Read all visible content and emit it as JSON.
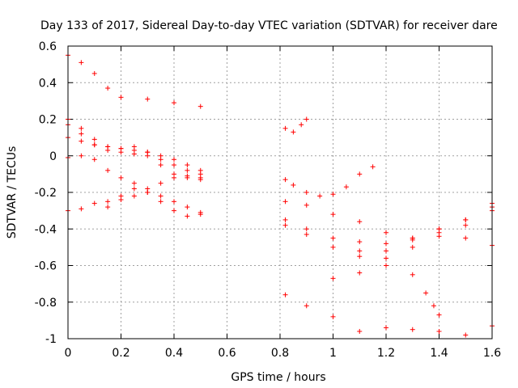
{
  "chart_data": {
    "type": "scatter",
    "title": "Day 133 of 2017, Sidereal Day-to-day VTEC variation (SDTVAR) for receiver dare",
    "xlabel": "GPS time / hours",
    "ylabel": "SDTVAR / TECUs",
    "xlim": [
      0,
      1.6
    ],
    "ylim": [
      -1,
      0.6
    ],
    "xticks": [
      0,
      0.2,
      0.4,
      0.6,
      0.8,
      1,
      1.2,
      1.4,
      1.6
    ],
    "xtick_labels": [
      "0",
      "0.2",
      "0.4",
      "0.6",
      "0.8",
      "1",
      "1.2",
      "1.4",
      "1.6"
    ],
    "yticks": [
      -1,
      -0.8,
      -0.6,
      -0.4,
      -0.2,
      0,
      0.2,
      0.4,
      0.6
    ],
    "ytick_labels": [
      "-1",
      "-0.8",
      "-0.6",
      "-0.4",
      "-0.2",
      "0",
      "0.2",
      "0.4",
      "0.6"
    ],
    "grid": true,
    "marker": "+",
    "color": "#ff0000",
    "series": [
      {
        "name": "s1",
        "x": [
          0.0,
          0.05,
          0.1,
          0.15,
          0.2,
          0.3,
          0.4,
          0.5
        ],
        "y": [
          0.55,
          0.51,
          0.45,
          0.37,
          0.32,
          0.31,
          0.29,
          0.27
        ]
      },
      {
        "name": "s2",
        "x": [
          0.0,
          0.05,
          0.1,
          0.15,
          0.2,
          0.25,
          0.3,
          0.35,
          0.4,
          0.45,
          0.5
        ],
        "y": [
          0.2,
          0.15,
          0.09,
          0.05,
          0.02,
          0.01,
          0.0,
          -0.02,
          -0.05,
          -0.08,
          -0.1
        ]
      },
      {
        "name": "s3",
        "x": [
          0.0,
          0.05,
          0.1,
          0.15,
          0.2,
          0.25,
          0.3,
          0.35,
          0.4,
          0.45,
          0.5
        ],
        "y": [
          0.1,
          0.08,
          0.06,
          0.05,
          0.04,
          0.03,
          0.02,
          0.0,
          -0.02,
          -0.05,
          -0.08
        ]
      },
      {
        "name": "s4",
        "x": [
          0.0,
          0.05,
          0.1,
          0.15,
          0.2,
          0.25,
          0.3,
          0.35,
          0.4,
          0.45,
          0.5
        ],
        "y": [
          0.17,
          0.12,
          0.06,
          0.03,
          0.04,
          0.05,
          0.02,
          -0.05,
          -0.1,
          -0.12,
          -0.12
        ]
      },
      {
        "name": "s5",
        "x": [
          0.0,
          0.05,
          0.1,
          0.15,
          0.2,
          0.25,
          0.3,
          0.35,
          0.4,
          0.45,
          0.5
        ],
        "y": [
          -0.01,
          0.0,
          -0.02,
          -0.08,
          -0.12,
          -0.15,
          -0.18,
          -0.22,
          -0.25,
          -0.28,
          -0.32
        ]
      },
      {
        "name": "s6",
        "x": [
          0.0,
          0.05,
          0.1,
          0.15,
          0.2,
          0.25,
          0.3,
          0.35,
          0.4,
          0.45,
          0.5
        ],
        "y": [
          -0.3,
          -0.29,
          -0.26,
          -0.25,
          -0.24,
          -0.22,
          -0.2,
          -0.15,
          -0.12,
          -0.11,
          -0.13
        ]
      },
      {
        "name": "s7",
        "x": [
          0.15,
          0.2,
          0.25,
          0.3,
          0.35,
          0.4,
          0.45,
          0.5
        ],
        "y": [
          -0.28,
          -0.22,
          -0.18,
          -0.2,
          -0.25,
          -0.3,
          -0.33,
          -0.31
        ]
      },
      {
        "name": "s8",
        "x": [
          0.82,
          0.85,
          0.88,
          0.9
        ],
        "y": [
          0.15,
          0.13,
          0.17,
          0.2
        ]
      },
      {
        "name": "s9",
        "x": [
          0.82,
          0.85,
          0.9,
          0.95,
          1.0,
          1.05,
          1.1,
          1.15
        ],
        "y": [
          -0.13,
          -0.16,
          -0.2,
          -0.22,
          -0.21,
          -0.17,
          -0.1,
          -0.06
        ]
      },
      {
        "name": "s10",
        "x": [
          0.82,
          0.9,
          1.0,
          1.1,
          1.2,
          1.3,
          1.4,
          1.5,
          1.6
        ],
        "y": [
          -0.25,
          -0.27,
          -0.32,
          -0.36,
          -0.42,
          -0.46,
          -0.44,
          -0.45,
          -0.49
        ]
      },
      {
        "name": "s11",
        "x": [
          0.82,
          0.9,
          1.0,
          1.1,
          1.2,
          1.3,
          1.4,
          1.5,
          1.6
        ],
        "y": [
          -0.35,
          -0.4,
          -0.45,
          -0.47,
          -0.48,
          -0.45,
          -0.4,
          -0.35,
          -0.28
        ]
      },
      {
        "name": "s12",
        "x": [
          0.82,
          0.9,
          1.0,
          1.1,
          1.2,
          1.3,
          1.4,
          1.5,
          1.6
        ],
        "y": [
          -0.38,
          -0.43,
          -0.5,
          -0.52,
          -0.56,
          -0.5,
          -0.42,
          -0.35,
          -0.26
        ]
      },
      {
        "name": "s13",
        "x": [
          1.0,
          1.1,
          1.2,
          1.3,
          1.35,
          1.38,
          1.4
        ],
        "y": [
          -0.67,
          -0.64,
          -0.6,
          -0.65,
          -0.75,
          -0.82,
          -0.87
        ]
      },
      {
        "name": "s14",
        "x": [
          1.1,
          1.2,
          1.3,
          1.4,
          1.5,
          1.6
        ],
        "y": [
          -0.55,
          -0.52,
          -0.45,
          -0.4,
          -0.38,
          -0.3
        ]
      },
      {
        "name": "s15",
        "x": [
          0.82,
          0.9,
          1.0,
          1.1,
          1.2,
          1.3,
          1.4,
          1.5,
          1.6
        ],
        "y": [
          -0.76,
          -0.82,
          -0.88,
          -0.96,
          -0.94,
          -0.95,
          -0.96,
          -0.98,
          -0.93
        ]
      }
    ]
  }
}
